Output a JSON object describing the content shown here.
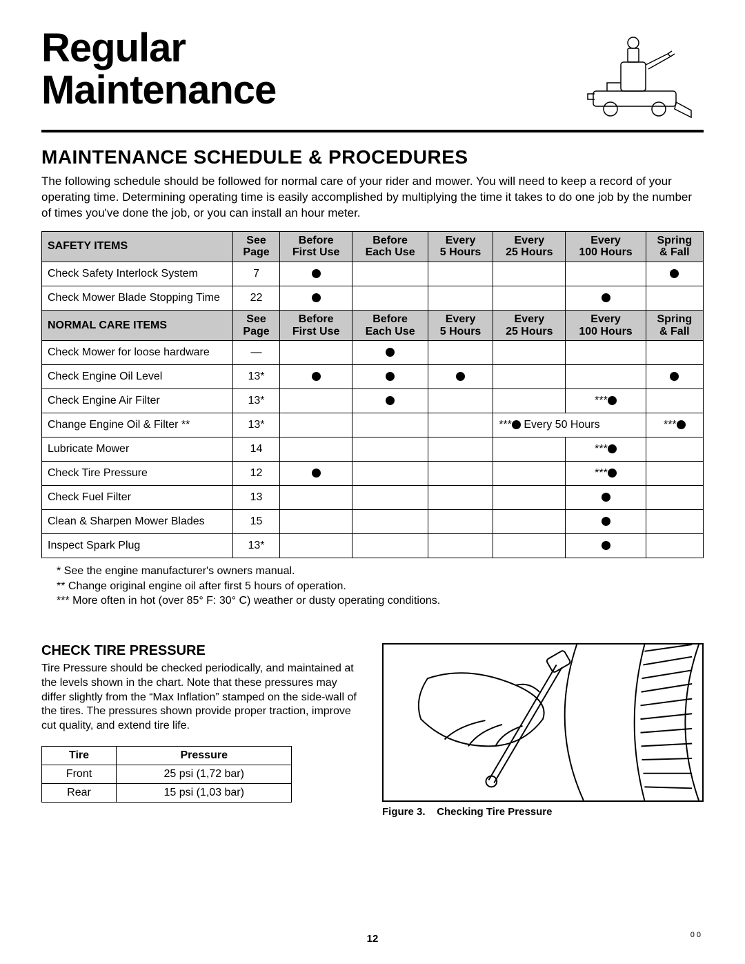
{
  "header": {
    "title_line1": "Regular",
    "title_line2": "Maintenance"
  },
  "section_heading": "MAINTENANCE SCHEDULE & PROCEDURES",
  "intro_paragraph": "The following schedule should be followed for normal care of your rider and mower. You will need to keep a record of your operating time. Determining operating time is easily accomplished by multiplying the time it takes to do one job by the number of times you've done the job, or you can install an hour meter.",
  "maint_table": {
    "col_headers": [
      {
        "l1": "See",
        "l2": "Page"
      },
      {
        "l1": "Before",
        "l2": "First Use"
      },
      {
        "l1": "Before",
        "l2": "Each Use"
      },
      {
        "l1": "Every",
        "l2": "5 Hours"
      },
      {
        "l1": "Every",
        "l2": "25 Hours"
      },
      {
        "l1": "Every",
        "l2": "100 Hours"
      },
      {
        "l1": "Spring",
        "l2": "& Fall"
      }
    ],
    "safety_label": "SAFETY ITEMS",
    "safety_rows": [
      {
        "name": "Check Safety Interlock System",
        "page": "7",
        "first": true,
        "each": false,
        "h5": false,
        "h25": false,
        "h100": "",
        "spring": true
      },
      {
        "name": "Check Mower Blade Stopping Time",
        "page": "22",
        "first": true,
        "each": false,
        "h5": false,
        "h25": false,
        "h100": "dot",
        "spring": false
      }
    ],
    "normal_label": "NORMAL CARE ITEMS",
    "normal_rows": [
      {
        "name": "Check Mower for loose hardware",
        "page": "—",
        "first": false,
        "each": true,
        "h5": false,
        "h25": false,
        "h100": "",
        "spring": false
      },
      {
        "name": "Check Engine Oil Level",
        "page": "13*",
        "first": true,
        "each": true,
        "h5": true,
        "h25": false,
        "h100": "",
        "spring": true
      },
      {
        "name": "Check Engine Air Filter",
        "page": "13*",
        "first": false,
        "each": true,
        "h5": false,
        "h25": false,
        "h100": "stardot",
        "spring": false
      },
      {
        "name": "Change Engine Oil & Filter **",
        "page": "13*",
        "first": false,
        "each": false,
        "h5": false,
        "h25": false,
        "h100": "special50",
        "spring": "stardot"
      },
      {
        "name": "Lubricate Mower",
        "page": "14",
        "first": false,
        "each": false,
        "h5": false,
        "h25": false,
        "h100": "stardot",
        "spring": false
      },
      {
        "name": "Check Tire Pressure",
        "page": "12",
        "first": true,
        "each": false,
        "h5": false,
        "h25": false,
        "h100": "stardot",
        "spring": false
      },
      {
        "name": "Check Fuel Filter",
        "page": "13",
        "first": false,
        "each": false,
        "h5": false,
        "h25": false,
        "h100": "dot",
        "spring": false
      },
      {
        "name": "Clean & Sharpen Mower Blades",
        "page": "15",
        "first": false,
        "each": false,
        "h5": false,
        "h25": false,
        "h100": "dot",
        "spring": false
      },
      {
        "name": "Inspect Spark Plug",
        "page": "13*",
        "first": false,
        "each": false,
        "h5": false,
        "h25": false,
        "h100": "dot",
        "spring": false
      }
    ],
    "special_50_text": " Every 50 Hours"
  },
  "footnotes": [
    "* See the engine manufacturer's owners manual.",
    "** Change original engine oil after first 5 hours of operation.",
    "*** More often in hot (over 85° F: 30° C) weather or dusty operating conditions."
  ],
  "tire_section": {
    "heading": "CHECK TIRE PRESSURE",
    "paragraph": "Tire Pressure should be checked periodically, and maintained at the levels shown in the chart. Note that these pressures may differ slightly from the “Max Inflation” stamped on the side-wall of the tires. The pressures shown provide proper traction, improve cut quality, and extend tire life.",
    "columns": [
      "Tire",
      "Pressure"
    ],
    "rows": [
      {
        "tire": "Front",
        "pressure": "25 psi (1,72 bar)"
      },
      {
        "tire": "Rear",
        "pressure": "15 psi (1,03 bar)"
      }
    ],
    "figure_label": "Figure 3.",
    "figure_caption": "Checking Tire Pressure"
  },
  "page_number": "12",
  "corner_code": "0 0",
  "colors": {
    "header_gray": "#c9c9c9",
    "border": "#000000",
    "text": "#000000",
    "background": "#ffffff"
  }
}
